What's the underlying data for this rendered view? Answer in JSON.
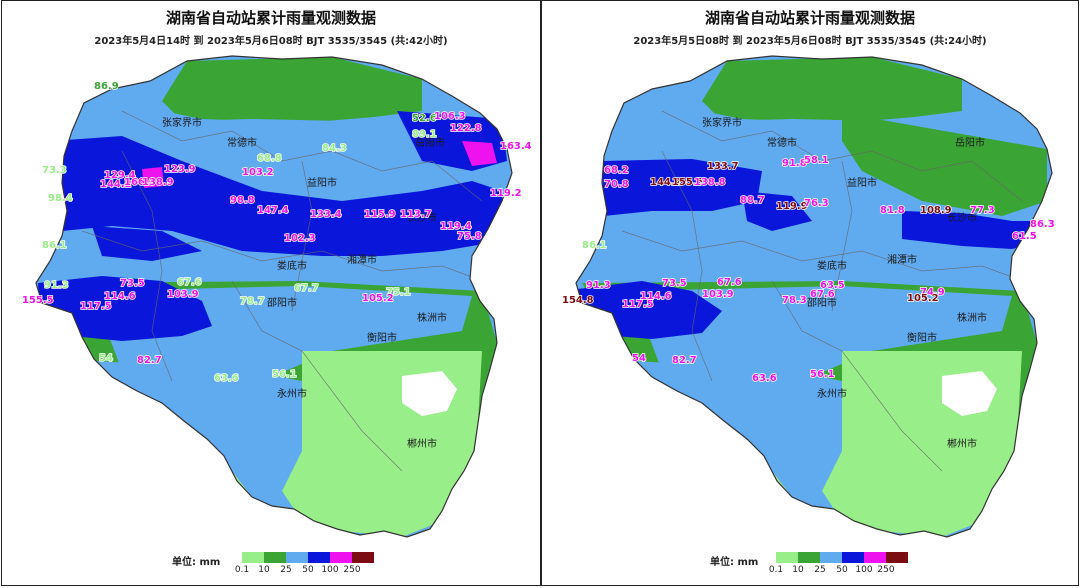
{
  "legend_colors": [
    "#98ee88",
    "#3aa534",
    "#60aaf0",
    "#0a16d9",
    "#ee12ee",
    "#7a0c12"
  ],
  "panels": [
    {
      "title": "湖南省自动站累计雨量观测数据",
      "subtitle": "2023年5月4日14时 到 2023年5月6日08时 BJT 3535/3545 (共:42小时)",
      "legend": {
        "unit": "单位:  mm",
        "ticks": [
          "0.1",
          "10",
          "25",
          "50",
          "100",
          "250"
        ]
      },
      "cities": [
        "张家界市",
        "常德市",
        "岳阳市",
        "益阳市",
        "长沙市",
        "娄底市",
        "湘潭市",
        "株洲市",
        "邵阳市",
        "衡阳市",
        "永州市",
        "郴州市"
      ],
      "values": [
        "86.9",
        "52.6",
        "106.3",
        "122.8",
        "89.1",
        "163.4",
        "73.3",
        "129.4",
        "144.2",
        "166.6",
        "138.9",
        "123.9",
        "68.8",
        "84.3",
        "103.2",
        "98.4",
        "98.8",
        "147.4",
        "133.4",
        "115.9",
        "113.7",
        "119.2",
        "86.1",
        "102.3",
        "119.4",
        "75.8",
        "91.3",
        "73.5",
        "67.6",
        "67.7",
        "75.1",
        "155.5",
        "114.6",
        "103.9",
        "78.7",
        "105.2",
        "117.5",
        "54",
        "82.7",
        "63.6",
        "56.1"
      ]
    },
    {
      "title": "湖南省自动站累计雨量观测数据",
      "subtitle": "2023年5月5日08时 到 2023年5月6日08时 BJT 3535/3545 (共:24小时)",
      "legend": {
        "unit": "单位:  mm",
        "ticks": [
          "0.1",
          "10",
          "25",
          "50",
          "100",
          "250"
        ]
      },
      "cities": [
        "张家界市",
        "常德市",
        "岳阳市",
        "益阳市",
        "长沙市",
        "娄底市",
        "湘潭市",
        "株洲市",
        "邵阳市",
        "衡阳市",
        "永州市",
        "郴州市"
      ],
      "values": [
        "68.2",
        "133.7",
        "91.8",
        "58.1",
        "70.8",
        "144.2",
        "155.5",
        "138.8",
        "88.7",
        "119.9",
        "76.3",
        "81.8",
        "108.9",
        "77.3",
        "61.5",
        "86.3",
        "86.1",
        "91.3",
        "73.5",
        "67.6",
        "63.5",
        "154.8",
        "114.6",
        "103.9",
        "78.3",
        "67.6",
        "74.9",
        "105.2",
        "117.5",
        "54",
        "82.7",
        "63.6",
        "56.1"
      ]
    }
  ]
}
